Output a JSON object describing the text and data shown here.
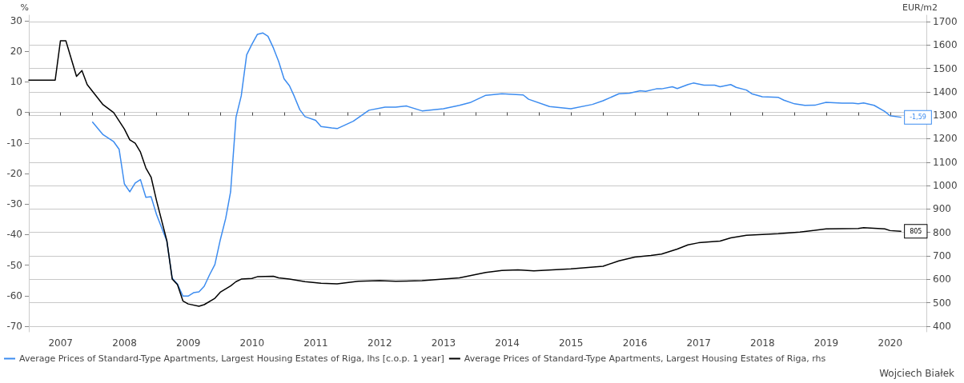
{
  "chart_data": {
    "type": "line",
    "ylabel": "%",
    "y2label": "EUR/m2",
    "xlim": [
      "2007-01-01",
      "2021-01-25"
    ],
    "xticks": [
      {
        "value": "2007-01-01",
        "label": null
      },
      {
        "value": "2007-07-02",
        "label": "2007"
      },
      {
        "value": "2008-01-01",
        "label": null
      },
      {
        "value": "2008-07-02",
        "label": "2008"
      },
      {
        "value": "2009-01-01",
        "label": null
      },
      {
        "value": "2009-07-02",
        "label": "2009"
      },
      {
        "value": "2010-01-01",
        "label": null
      },
      {
        "value": "2010-07-02",
        "label": "2010"
      },
      {
        "value": "2011-01-01",
        "label": null
      },
      {
        "value": "2011-07-02",
        "label": "2011"
      },
      {
        "value": "2012-01-01",
        "label": null
      },
      {
        "value": "2012-07-02",
        "label": "2012"
      },
      {
        "value": "2013-01-01",
        "label": null
      },
      {
        "value": "2013-07-02",
        "label": "2013"
      },
      {
        "value": "2014-01-01",
        "label": null
      },
      {
        "value": "2014-07-02",
        "label": "2014"
      },
      {
        "value": "2015-01-01",
        "label": null
      },
      {
        "value": "2015-07-02",
        "label": "2015"
      },
      {
        "value": "2016-01-01",
        "label": null
      },
      {
        "value": "2016-07-02",
        "label": "2016"
      },
      {
        "value": "2017-01-01",
        "label": null
      },
      {
        "value": "2017-07-02",
        "label": "2017"
      },
      {
        "value": "2018-01-01",
        "label": null
      },
      {
        "value": "2018-07-02",
        "label": "2018"
      },
      {
        "value": "2019-01-01",
        "label": null
      },
      {
        "value": "2019-07-02",
        "label": "2019"
      },
      {
        "value": "2020-01-01",
        "label": null
      },
      {
        "value": "2020-07-02",
        "label": "2020"
      },
      {
        "value": "2021-01-01",
        "label": null
      }
    ],
    "ylim": [
      -71.8,
      31.8
    ],
    "yticks": [
      -70,
      -60,
      -50,
      -40,
      -30,
      -20,
      -10,
      0,
      10,
      20,
      30
    ],
    "y2lim": [
      376,
      1727
    ],
    "y2ticks": [
      400,
      500,
      600,
      700,
      800,
      900,
      1000,
      1100,
      1200,
      1300,
      1400,
      1500,
      1600,
      1700
    ],
    "grid": "y",
    "legend": "bottom",
    "marker": "none",
    "line_style": "solid",
    "annotations": [
      "Wojciech Białek"
    ],
    "series": [
      {
        "name": "Average Prices of Standard-Type Apartments, Largest Housing Estates of Riga, lhs [c.o.p. 1 year]",
        "color": "#3c8cf0",
        "x": [
          "2008-01",
          "2008-03",
          "2008-05",
          "2008-06",
          "2008-07",
          "2008-08",
          "2008-09",
          "2008-10",
          "2008-11",
          "2008-12",
          "2009-01",
          "2009-03",
          "2009-04",
          "2009-05",
          "2009-06",
          "2009-07",
          "2009-08",
          "2009-09",
          "2009-10",
          "2009-11",
          "2009-12",
          "2010-01",
          "2010-02",
          "2010-03",
          "2010-04",
          "2010-05",
          "2010-06",
          "2010-07",
          "2010-08",
          "2010-09",
          "2010-10",
          "2010-11",
          "2010-12",
          "2011-01",
          "2011-02",
          "2011-03",
          "2011-04",
          "2011-05",
          "2011-07",
          "2011-08",
          "2011-10",
          "2011-11",
          "2012-02",
          "2012-05",
          "2012-08",
          "2012-10",
          "2012-12",
          "2013-03",
          "2013-07",
          "2013-10",
          "2013-12",
          "2014-03",
          "2014-06",
          "2014-10",
          "2014-11",
          "2015-03",
          "2015-07",
          "2015-11",
          "2016-01",
          "2016-04",
          "2016-06",
          "2016-08",
          "2016-09",
          "2016-11",
          "2016-12",
          "2017-02",
          "2017-03",
          "2017-05",
          "2017-06",
          "2017-08",
          "2017-10",
          "2017-11",
          "2018-01",
          "2018-02",
          "2018-04",
          "2018-05",
          "2018-07",
          "2018-10",
          "2018-11",
          "2019-01",
          "2019-03",
          "2019-05",
          "2019-07",
          "2019-10",
          "2019-12",
          "2020-01",
          "2020-02",
          "2020-04",
          "2020-06",
          "2020-07",
          "2020-09"
        ],
        "values": [
          -3.2,
          -7.3,
          -9.6,
          -12.1,
          -23.4,
          -26.0,
          -23.1,
          -22.0,
          -27.8,
          -27.6,
          -33.4,
          -42.1,
          -54.3,
          -56.2,
          -60.1,
          -60.1,
          -59.0,
          -58.7,
          -56.9,
          -53.1,
          -49.8,
          -41.7,
          -34.7,
          -26.0,
          -1.6,
          5.4,
          18.8,
          22.3,
          25.5,
          26.0,
          24.9,
          21.1,
          16.7,
          11.0,
          8.7,
          5.2,
          0.9,
          -1.4,
          -2.6,
          -4.6,
          -5.1,
          -5.3,
          -2.9,
          0.7,
          1.7,
          1.7,
          2.1,
          0.5,
          1.2,
          2.3,
          3.2,
          5.6,
          6.1,
          5.7,
          4.3,
          1.9,
          1.2,
          2.6,
          3.8,
          6.1,
          6.3,
          7.1,
          6.9,
          7.7,
          7.7,
          8.4,
          7.8,
          9.1,
          9.6,
          8.9,
          8.9,
          8.4,
          9.1,
          8.2,
          7.3,
          6.1,
          5.1,
          4.9,
          4.0,
          2.8,
          2.3,
          2.4,
          3.3,
          3.0,
          3.0,
          2.8,
          3.1,
          2.3,
          0.3,
          -1.1,
          -1.59
        ],
        "value_labels": [
          null,
          null,
          null,
          null,
          null,
          null,
          null,
          null,
          null,
          null,
          null,
          null,
          null,
          null,
          null,
          null,
          null,
          null,
          null,
          null,
          null,
          null,
          null,
          null,
          null,
          null,
          null,
          null,
          null,
          null,
          null,
          null,
          null,
          null,
          null,
          null,
          null,
          null,
          null,
          null,
          null,
          null,
          null,
          null,
          null,
          null,
          null,
          null,
          null,
          null,
          null,
          null,
          null,
          null,
          null,
          null,
          null,
          null,
          null,
          null,
          null,
          null,
          null,
          null,
          null,
          null,
          null,
          null,
          null,
          null,
          null,
          null,
          null,
          null,
          null,
          null,
          null,
          null,
          null,
          null,
          null,
          null,
          null,
          null,
          null,
          null,
          null,
          null,
          null,
          null,
          "-1,59"
        ]
      },
      {
        "name": "Average Prices of Standard-Type Apartments, Largest Housing Estates of Riga, rhs",
        "color": "#000000",
        "axis": "y2",
        "x": [
          "2007-01",
          "2007-06",
          "2007-07",
          "2007-08",
          "2007-10",
          "2007-11",
          "2007-12",
          "2008-03",
          "2008-05",
          "2008-07",
          "2008-08",
          "2008-09",
          "2008-10",
          "2008-11",
          "2008-12",
          "2009-01",
          "2009-03",
          "2009-04",
          "2009-05",
          "2009-06",
          "2009-07",
          "2009-09",
          "2009-10",
          "2009-12",
          "2010-01",
          "2010-03",
          "2010-04",
          "2010-05",
          "2010-07",
          "2010-08",
          "2010-11",
          "2010-12",
          "2011-02",
          "2011-05",
          "2011-08",
          "2011-11",
          "2012-03",
          "2012-07",
          "2012-10",
          "2013-03",
          "2013-10",
          "2014-03",
          "2014-06",
          "2014-09",
          "2014-12",
          "2015-07",
          "2016-01",
          "2016-04",
          "2016-07",
          "2016-10",
          "2016-12",
          "2017-03",
          "2017-05",
          "2017-07",
          "2017-11",
          "2018-01",
          "2018-04",
          "2018-10",
          "2019-02",
          "2019-07",
          "2020-01",
          "2020-02",
          "2020-06",
          "2020-07",
          "2020-09"
        ],
        "values": [
          1450,
          1450,
          1618,
          1618,
          1466,
          1491,
          1431,
          1345,
          1311,
          1241,
          1195,
          1181,
          1143,
          1075,
          1036,
          936,
          765,
          601,
          577,
          508,
          495,
          485,
          492,
          519,
          545,
          572,
          590,
          601,
          604,
          611,
          613,
          606,
          601,
          590,
          583,
          581,
          592,
          594,
          592,
          594,
          606,
          629,
          638,
          640,
          636,
          645,
          656,
          679,
          695,
          702,
          708,
          729,
          747,
          756,
          763,
          777,
          788,
          795,
          802,
          815,
          817,
          820,
          815,
          808,
          805
        ],
        "value_labels": [
          null,
          null,
          null,
          null,
          null,
          null,
          null,
          null,
          null,
          null,
          null,
          null,
          null,
          null,
          null,
          null,
          null,
          null,
          null,
          null,
          null,
          null,
          null,
          null,
          null,
          null,
          null,
          null,
          null,
          null,
          null,
          null,
          null,
          null,
          null,
          null,
          null,
          null,
          null,
          null,
          null,
          null,
          null,
          null,
          null,
          null,
          null,
          null,
          null,
          null,
          null,
          null,
          null,
          null,
          null,
          null,
          null,
          null,
          null,
          null,
          null,
          null,
          null,
          null,
          "805"
        ]
      }
    ]
  }
}
